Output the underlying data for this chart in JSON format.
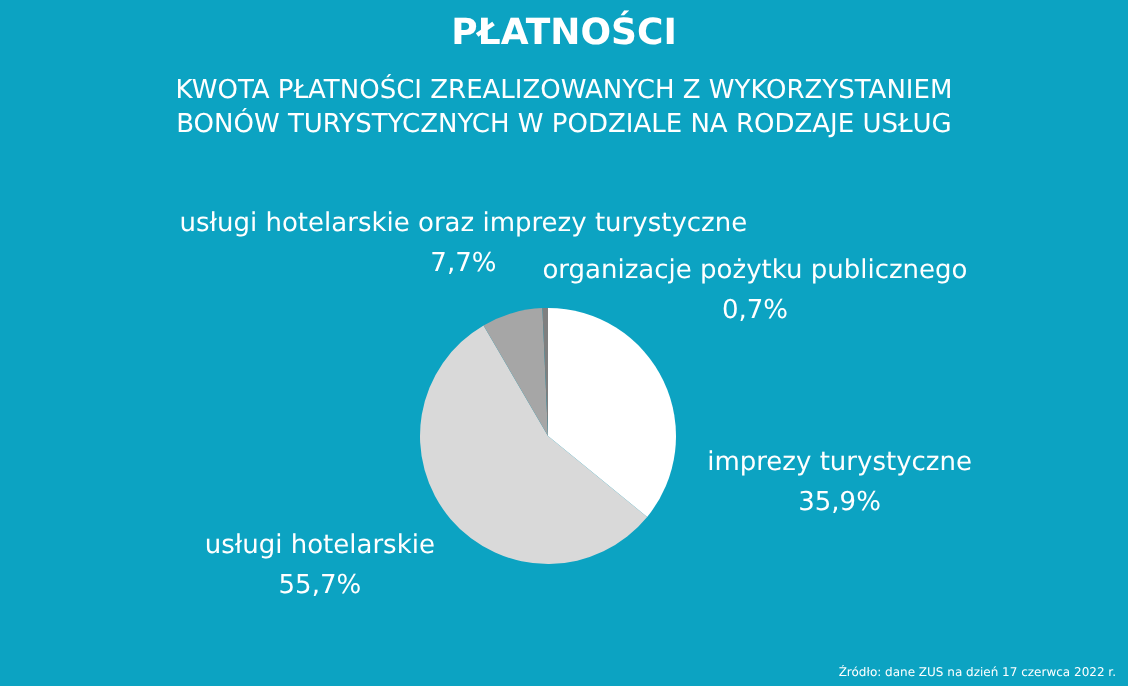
{
  "chart_data": {
    "type": "pie",
    "title": "PŁATNOŚCI",
    "subtitle": "KWOTA PŁATNOŚCI ZREALIZOWANYCH Z WYKORZYSTANIEM BONÓW TURYSTYCZNYCH W PODZIALE NA RODZAJE USŁUG",
    "categories": [
      "imprezy turystyczne",
      "usługi hotelarskie",
      "usługi hotelarskie oraz imprezy turystyczne",
      "organizacje pożytku publicznego"
    ],
    "values": [
      35.9,
      55.7,
      7.7,
      0.7
    ],
    "value_labels": [
      "35,9%",
      "55,7%",
      "7,7%",
      "0,7%"
    ],
    "colors": [
      "#ffffff",
      "#d9d9d9",
      "#a6a6a6",
      "#7f7f7f"
    ],
    "annotations": [
      "Źródło: dane ZUS na dzień 17 czerwca 2022 r."
    ],
    "legend": false
  }
}
